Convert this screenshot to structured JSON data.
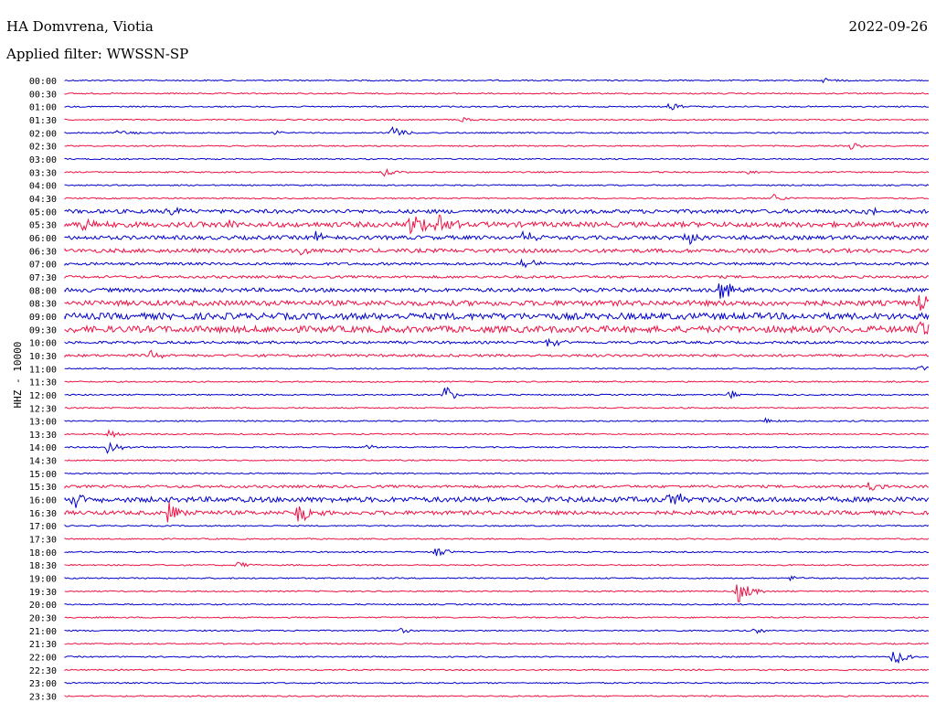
{
  "header": {
    "station": "HA Domvrena, Viotia",
    "date": "2022-09-26",
    "filter": "Applied filter: WWSSN-SP"
  },
  "chart_data": {
    "type": "line",
    "title": "HA Domvrena, Viotia",
    "ylabel": "HHZ - 10000",
    "x_start_px_hint": "helicorder",
    "row_labels": [
      "00:00",
      "00:30",
      "01:00",
      "01:30",
      "02:00",
      "02:30",
      "03:00",
      "03:30",
      "04:00",
      "04:30",
      "05:00",
      "05:30",
      "06:00",
      "06:30",
      "07:00",
      "07:30",
      "08:00",
      "08:30",
      "09:00",
      "09:30",
      "10:00",
      "10:30",
      "11:00",
      "11:30",
      "12:00",
      "12:30",
      "13:00",
      "13:30",
      "14:00",
      "14:30",
      "15:00",
      "15:30",
      "16:00",
      "16:30",
      "17:00",
      "17:30",
      "18:00",
      "18:30",
      "19:00",
      "19:30",
      "20:00",
      "20:30",
      "21:00",
      "21:30",
      "22:00",
      "22:30",
      "23:00",
      "23:30"
    ],
    "colors": [
      "#0000cc",
      "#ee1144"
    ],
    "noise_level": [
      1,
      1,
      1,
      1,
      1,
      1,
      1,
      1,
      1,
      1,
      3,
      4,
      3,
      3,
      2,
      2,
      3,
      4,
      5,
      5,
      2,
      2,
      1,
      1,
      1,
      1,
      1,
      1,
      1,
      1,
      1,
      2,
      4,
      3,
      1,
      1,
      1,
      1,
      1,
      1,
      1,
      1,
      1,
      1,
      1,
      1,
      1,
      1
    ],
    "events": [
      {
        "row": 0,
        "t": 0.88,
        "amp": 3
      },
      {
        "row": 2,
        "t": 0.7,
        "amp": 5
      },
      {
        "row": 3,
        "t": 0.46,
        "amp": 3
      },
      {
        "row": 4,
        "t": 0.06,
        "amp": 4
      },
      {
        "row": 4,
        "t": 0.24,
        "amp": 3
      },
      {
        "row": 4,
        "t": 0.38,
        "amp": 8
      },
      {
        "row": 5,
        "t": 0.91,
        "amp": 4
      },
      {
        "row": 7,
        "t": 0.37,
        "amp": 5
      },
      {
        "row": 7,
        "t": 0.79,
        "amp": 2
      },
      {
        "row": 9,
        "t": 0.82,
        "amp": 5
      },
      {
        "row": 10,
        "t": 0.12,
        "amp": 6
      },
      {
        "row": 10,
        "t": 0.93,
        "amp": 8
      },
      {
        "row": 11,
        "t": 0.02,
        "amp": 9
      },
      {
        "row": 11,
        "t": 0.19,
        "amp": 7
      },
      {
        "row": 11,
        "t": 0.4,
        "amp": 18
      },
      {
        "row": 11,
        "t": 0.43,
        "amp": 16
      },
      {
        "row": 12,
        "t": 0.29,
        "amp": 7
      },
      {
        "row": 12,
        "t": 0.72,
        "amp": 12
      },
      {
        "row": 12,
        "t": 0.53,
        "amp": 8
      },
      {
        "row": 13,
        "t": 0.27,
        "amp": 8
      },
      {
        "row": 14,
        "t": 0.53,
        "amp": 9
      },
      {
        "row": 16,
        "t": 0.76,
        "amp": 14
      },
      {
        "row": 17,
        "t": 0.99,
        "amp": 9
      },
      {
        "row": 19,
        "t": 0.99,
        "amp": 10
      },
      {
        "row": 20,
        "t": 0.56,
        "amp": 5
      },
      {
        "row": 21,
        "t": 0.1,
        "amp": 6
      },
      {
        "row": 22,
        "t": 0.99,
        "amp": 4
      },
      {
        "row": 24,
        "t": 0.44,
        "amp": 9
      },
      {
        "row": 24,
        "t": 0.77,
        "amp": 5
      },
      {
        "row": 26,
        "t": 0.81,
        "amp": 4
      },
      {
        "row": 27,
        "t": 0.05,
        "amp": 6
      },
      {
        "row": 28,
        "t": 0.05,
        "amp": 7
      },
      {
        "row": 28,
        "t": 0.35,
        "amp": 3
      },
      {
        "row": 31,
        "t": 0.93,
        "amp": 5
      },
      {
        "row": 32,
        "t": 0.01,
        "amp": 9
      },
      {
        "row": 32,
        "t": 0.7,
        "amp": 12
      },
      {
        "row": 33,
        "t": 0.12,
        "amp": 14
      },
      {
        "row": 33,
        "t": 0.27,
        "amp": 13
      },
      {
        "row": 36,
        "t": 0.43,
        "amp": 6
      },
      {
        "row": 37,
        "t": 0.2,
        "amp": 4
      },
      {
        "row": 38,
        "t": 0.84,
        "amp": 3
      },
      {
        "row": 39,
        "t": 0.78,
        "amp": 13
      },
      {
        "row": 42,
        "t": 0.39,
        "amp": 3
      },
      {
        "row": 42,
        "t": 0.8,
        "amp": 3
      },
      {
        "row": 44,
        "t": 0.96,
        "amp": 10
      }
    ]
  }
}
